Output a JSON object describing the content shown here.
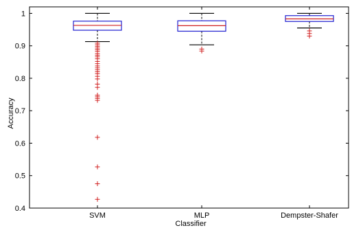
{
  "chart_data": {
    "type": "box",
    "title": "",
    "xlabel": "Classifier",
    "ylabel": "Accuracy",
    "ylim": [
      0.4,
      1.02
    ],
    "yticks": [
      0.4,
      0.5,
      0.6,
      0.7,
      0.8,
      0.9,
      1
    ],
    "ytick_labels": [
      "0.4",
      "0.5",
      "0.6",
      "0.7",
      "0.8",
      "0.9",
      "1"
    ],
    "grid": false,
    "categories": [
      "SVM",
      "MLP",
      "Dempster-Shafer"
    ],
    "boxes": [
      {
        "name": "SVM",
        "whisker_low": 0.913,
        "q1": 0.948,
        "median": 0.963,
        "q3": 0.976,
        "whisker_high": 1.0,
        "outliers": [
          0.908,
          0.903,
          0.898,
          0.893,
          0.888,
          0.883,
          0.876,
          0.871,
          0.866,
          0.86,
          0.852,
          0.845,
          0.838,
          0.832,
          0.826,
          0.82,
          0.814,
          0.806,
          0.798,
          0.782,
          0.772,
          0.748,
          0.743,
          0.738,
          0.732,
          0.618,
          0.527,
          0.475,
          0.427
        ]
      },
      {
        "name": "MLP",
        "whisker_low": 0.903,
        "q1": 0.945,
        "median": 0.962,
        "q3": 0.977,
        "whisker_high": 1.0,
        "outliers": [
          0.89,
          0.884
        ]
      },
      {
        "name": "Dempster-Shafer",
        "whisker_low": 0.955,
        "q1": 0.975,
        "median": 0.983,
        "q3": 0.993,
        "whisker_high": 1.0,
        "outliers": [
          0.946,
          0.938,
          0.93
        ]
      }
    ],
    "colors": {
      "box": "#1f1fd0",
      "median": "#d01f1f",
      "outlier": "#d01f1f",
      "whisker": "#000000",
      "frame": "#000000"
    }
  }
}
